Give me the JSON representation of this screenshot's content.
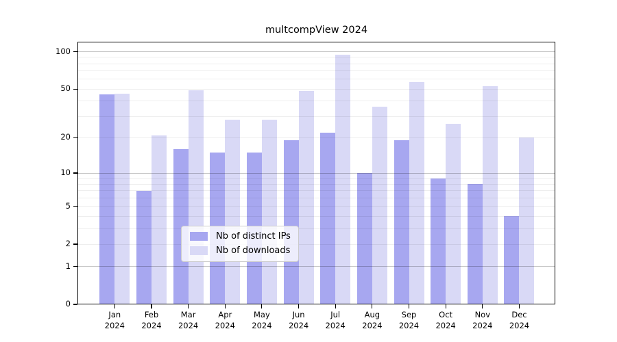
{
  "figure": {
    "title": "multcompView 2024",
    "background_color": "#ffffff",
    "frame_color": "#000000"
  },
  "chart_data": {
    "type": "bar",
    "title": "multcompView 2024",
    "xlabel": "",
    "ylabel": "",
    "y_scale": "log1p",
    "ylim": [
      0,
      120
    ],
    "grid": true,
    "legend_position": "bottom-center",
    "x_categories": [
      "Jan",
      "Feb",
      "Mar",
      "Apr",
      "May",
      "Jun",
      "Jul",
      "Aug",
      "Sep",
      "Oct",
      "Nov",
      "Dec"
    ],
    "x_year": "2024",
    "series": [
      {
        "name": "Nb of distinct IPs",
        "color": "#a7a7f0",
        "values": [
          45,
          7,
          16,
          15,
          15,
          19,
          22,
          10,
          19,
          9,
          8,
          4
        ]
      },
      {
        "name": "Nb of downloads",
        "color": "#d9d9f6",
        "values": [
          46,
          21,
          49,
          28,
          28,
          48,
          95,
          36,
          57,
          26,
          53,
          20
        ]
      }
    ],
    "y_tick_labels": [
      100,
      50,
      20,
      10,
      5,
      2,
      1,
      0
    ],
    "y_major_gridlines": [
      1,
      10,
      100
    ],
    "y_minor_gridlines": [
      2,
      3,
      4,
      5,
      6,
      7,
      8,
      9,
      20,
      30,
      40,
      50,
      60,
      70,
      80,
      90
    ],
    "gridline_major_color": "#c6c6c6",
    "gridline_minor_color": "#efefef"
  }
}
